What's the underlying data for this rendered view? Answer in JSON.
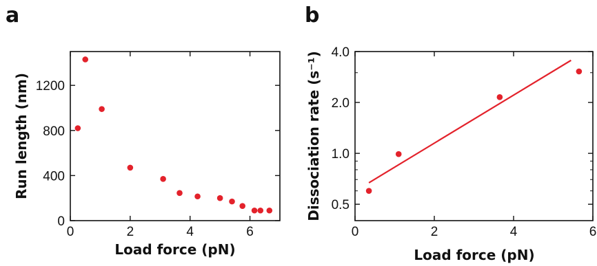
{
  "chart_data": [
    {
      "panel": "a",
      "type": "scatter",
      "xlabel": "Load force (pN)",
      "ylabel": "Run length (nm)",
      "xlim": [
        0,
        7
      ],
      "ylim": [
        0,
        1500
      ],
      "xticks": [
        "0",
        "2",
        "4",
        "6"
      ],
      "yticks": [
        "0",
        "400",
        "800",
        "1200"
      ],
      "point_color": "#e3222b",
      "points": [
        {
          "x": 0.25,
          "y": 820
        },
        {
          "x": 0.5,
          "y": 1430
        },
        {
          "x": 1.05,
          "y": 990
        },
        {
          "x": 2.0,
          "y": 470
        },
        {
          "x": 3.1,
          "y": 370
        },
        {
          "x": 3.65,
          "y": 245
        },
        {
          "x": 4.25,
          "y": 215
        },
        {
          "x": 5.0,
          "y": 200
        },
        {
          "x": 5.4,
          "y": 170
        },
        {
          "x": 5.75,
          "y": 130
        },
        {
          "x": 6.15,
          "y": 90
        },
        {
          "x": 6.35,
          "y": 90
        },
        {
          "x": 6.65,
          "y": 90
        }
      ]
    },
    {
      "panel": "b",
      "type": "scatter",
      "xlabel": "Load force (pN)",
      "ylabel": "Dissociation rate (s⁻¹)",
      "xlim": [
        0,
        6
      ],
      "ylim": [
        0.4,
        4.0
      ],
      "yscale": "log",
      "xticks": [
        "0",
        "2",
        "4",
        "6"
      ],
      "yticks": [
        "0.5",
        "1.0",
        "2.0",
        "4.0"
      ],
      "point_color": "#e3222b",
      "line_color": "#e3222b",
      "points": [
        {
          "x": 0.35,
          "y": 0.6
        },
        {
          "x": 1.1,
          "y": 0.99
        },
        {
          "x": 3.65,
          "y": 2.15
        },
        {
          "x": 5.65,
          "y": 3.05
        }
      ],
      "fit_line": [
        {
          "x": 0.35,
          "y": 0.67
        },
        {
          "x": 5.45,
          "y": 3.55
        }
      ]
    }
  ]
}
